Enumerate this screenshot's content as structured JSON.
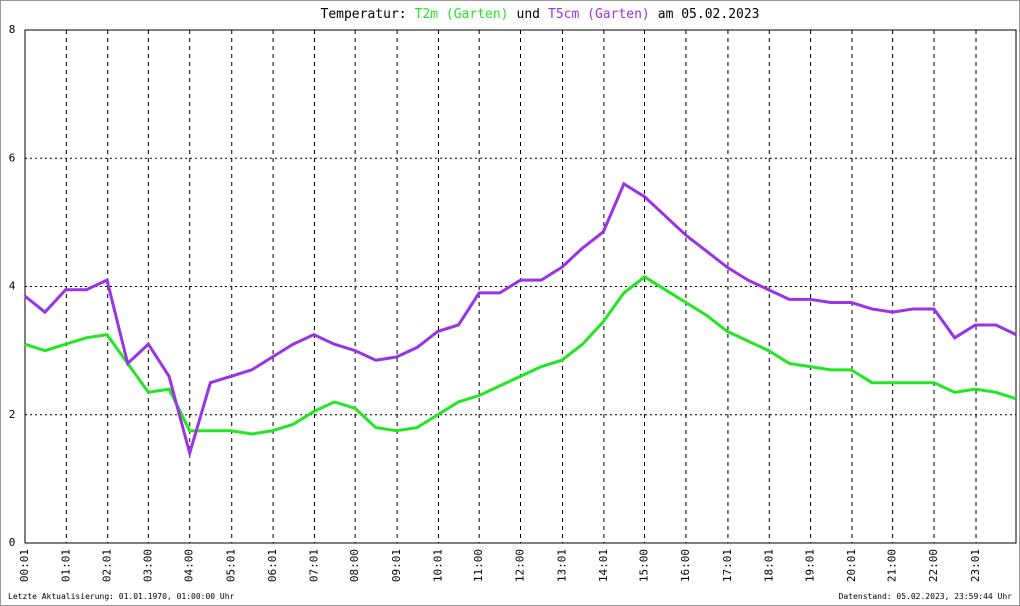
{
  "chart_data": {
    "type": "line",
    "title": {
      "prefix": "Temperatur:",
      "joiner": "und",
      "suffix": "am 05.02.2023"
    },
    "footer_left": "Letzte Aktualisierung: 01.01.1970, 01:00:00 Uhr",
    "footer_right": "Datenstand: 05.02.2023, 23:59:44 Uhr",
    "x": [
      "00:01",
      "00:30",
      "01:00",
      "01:30",
      "02:00",
      "02:30",
      "03:00",
      "03:30",
      "04:00",
      "04:30",
      "05:00",
      "05:30",
      "06:00",
      "06:30",
      "07:00",
      "07:30",
      "08:00",
      "08:30",
      "09:00",
      "09:30",
      "10:00",
      "10:30",
      "11:00",
      "11:30",
      "12:00",
      "12:30",
      "13:00",
      "13:30",
      "14:00",
      "14:30",
      "15:00",
      "15:30",
      "16:00",
      "16:30",
      "17:00",
      "17:30",
      "18:00",
      "18:30",
      "19:00",
      "19:30",
      "20:00",
      "20:30",
      "21:00",
      "21:30",
      "22:00",
      "22:30",
      "23:00",
      "23:30",
      "23:59"
    ],
    "series": [
      {
        "name": "T2m (Garten)",
        "color": "#22e622",
        "values": [
          3.1,
          3.0,
          3.1,
          3.2,
          3.25,
          2.8,
          2.35,
          2.4,
          1.75,
          1.75,
          1.75,
          1.7,
          1.75,
          1.85,
          2.05,
          2.2,
          2.1,
          1.8,
          1.75,
          1.8,
          2.0,
          2.2,
          2.3,
          2.45,
          2.6,
          2.75,
          2.85,
          3.1,
          3.45,
          3.9,
          4.15,
          3.95,
          3.75,
          3.55,
          3.3,
          3.15,
          3.0,
          2.8,
          2.75,
          2.7,
          2.7,
          2.5,
          2.5,
          2.5,
          2.5,
          2.35,
          2.4,
          2.35,
          2.25
        ]
      },
      {
        "name": "T5cm (Garten)",
        "color": "#9933e6",
        "values": [
          3.85,
          3.6,
          3.95,
          3.95,
          4.1,
          2.8,
          3.1,
          2.6,
          1.4,
          2.5,
          2.6,
          2.7,
          2.9,
          3.1,
          3.25,
          3.1,
          3.0,
          2.85,
          2.9,
          3.05,
          3.3,
          3.4,
          3.9,
          3.9,
          4.1,
          4.1,
          4.3,
          4.6,
          4.85,
          5.6,
          5.4,
          5.1,
          4.8,
          4.55,
          4.3,
          4.1,
          3.95,
          3.8,
          3.8,
          3.75,
          3.75,
          3.65,
          3.6,
          3.65,
          3.65,
          3.2,
          3.4,
          3.4,
          3.25
        ]
      }
    ],
    "xlim": [
      "00:01",
      "23:59"
    ],
    "xticks": [
      "00:01",
      "01:01",
      "02:01",
      "03:00",
      "04:00",
      "05:01",
      "06:01",
      "07:01",
      "08:00",
      "09:01",
      "10:01",
      "11:00",
      "12:00",
      "13:01",
      "14:01",
      "15:00",
      "16:00",
      "17:01",
      "18:01",
      "19:01",
      "20:01",
      "21:00",
      "22:00",
      "23:01"
    ],
    "ylim": [
      0,
      8
    ],
    "yticks": [
      0,
      2,
      4,
      6,
      8
    ],
    "grid": true
  }
}
